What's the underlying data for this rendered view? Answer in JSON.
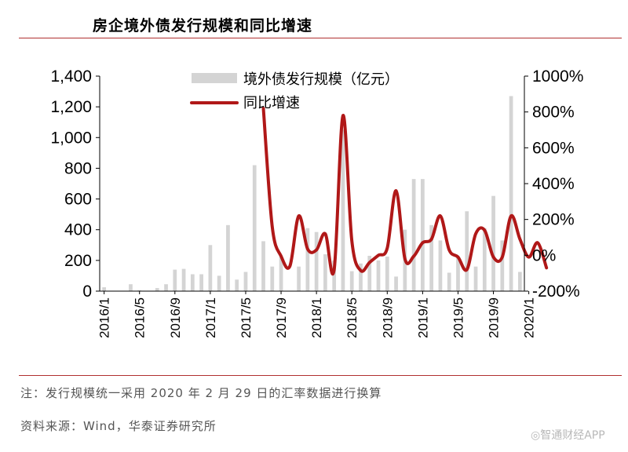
{
  "header": {
    "title": "房企境外债发行规模和同比增速"
  },
  "footer": {
    "note": "注：发行规模统一采用 2020 年 2 月 29 日的汇率数据进行换算",
    "source": "资料来源：Wind，华泰证券研究所",
    "watermark": "◎智通财经APP"
  },
  "colors": {
    "bar": "#d4d4d4",
    "line": "#b01818",
    "rule": "#b03030"
  },
  "chart_data": {
    "type": "bar+line",
    "title": "房企境外债发行规模和同比增速",
    "x_labels": [
      "2016/1",
      "2016/5",
      "2016/9",
      "2017/1",
      "2017/5",
      "2017/9",
      "2018/1",
      "2018/5",
      "2018/9",
      "2019/1",
      "2019/5",
      "2019/9",
      "2020/1"
    ],
    "x_label_indices": [
      0,
      4,
      8,
      12,
      16,
      20,
      24,
      28,
      32,
      36,
      40,
      44,
      48
    ],
    "left_axis": {
      "min": 0,
      "max": 1400,
      "ticks": [
        "0",
        "200",
        "400",
        "600",
        "800",
        "1,000",
        "1,200",
        "1,400"
      ]
    },
    "right_axis": {
      "min": -200,
      "max": 1000,
      "ticks": [
        "-200%",
        "0%",
        "200%",
        "400%",
        "600%",
        "800%",
        "1000%"
      ]
    },
    "series": [
      {
        "name": "境外债发行规模（亿元）",
        "type": "bar",
        "axis": "left",
        "values": [
          25,
          0,
          0,
          45,
          5,
          0,
          20,
          45,
          140,
          145,
          110,
          110,
          300,
          100,
          430,
          75,
          125,
          820,
          325,
          160,
          225,
          0,
          160,
          410,
          385,
          240,
          200,
          1050,
          130,
          180,
          230,
          200,
          225,
          95,
          400,
          730,
          730,
          430,
          330,
          120,
          220,
          520,
          160,
          410,
          620,
          330,
          1270,
          125
        ]
      },
      {
        "name": "同比增速",
        "type": "line",
        "axis": "right",
        "x_start": 18,
        "values": [
          820,
          160,
          -5,
          -60,
          220,
          35,
          30,
          120,
          -80,
          780,
          80,
          -85,
          -40,
          0,
          40,
          360,
          -20,
          -5,
          70,
          90,
          220,
          30,
          -10,
          -80,
          120,
          140,
          -10,
          -10,
          220,
          90,
          -10,
          70,
          -70
        ]
      }
    ],
    "legend": [
      "境外债发行规模（亿元）",
      "同比增速"
    ],
    "legend_position": "top-center"
  }
}
